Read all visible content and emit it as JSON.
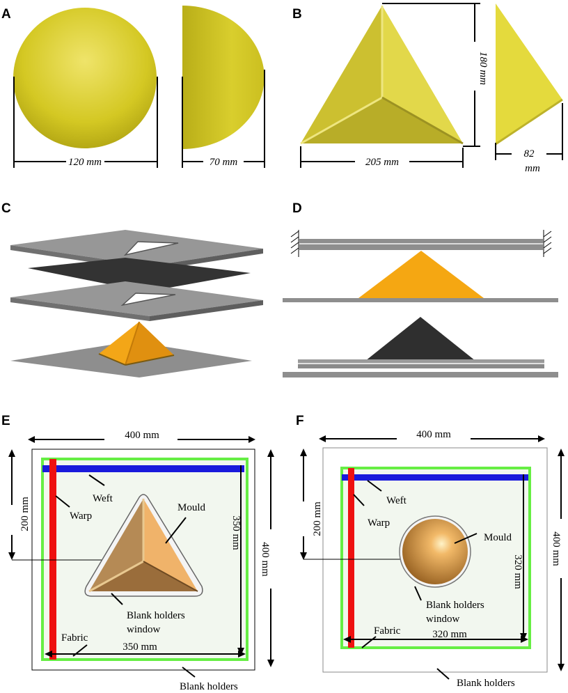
{
  "panels": {
    "a": {
      "label": "A",
      "dim_width": "120 mm",
      "dim_depth": "70 mm"
    },
    "b": {
      "label": "B",
      "dim_width": "205 mm",
      "dim_height": "180 mm",
      "dim_depth_1": "82",
      "dim_depth_2": "mm"
    },
    "c": {
      "label": "C"
    },
    "d": {
      "label": "D"
    },
    "e": {
      "label": "E",
      "dim_top": "400 mm",
      "dim_left": "200 mm",
      "dim_right": "400 mm",
      "dim_inner_v": "350 mm",
      "dim_inner_h": "350 mm",
      "weft": "Weft",
      "warp": "Warp",
      "mould": "Mould",
      "window_1": "Blank holders",
      "window_2": "window",
      "fabric": "Fabric",
      "holders": "Blank holders"
    },
    "f": {
      "label": "F",
      "dim_top": "400 mm",
      "dim_left": "200 mm",
      "dim_right": "400 mm",
      "dim_inner_v": "320 mm",
      "dim_inner_h": "320 mm",
      "weft": "Weft",
      "warp": "Warp",
      "mould": "Mould",
      "window_1": "Blank holders",
      "window_2": "window",
      "fabric": "Fabric",
      "holders": "Blank holders"
    }
  },
  "colors": {
    "mould_yellow": "#d8cc2a",
    "mould_orange": "#f5a712",
    "plate": "#8c8c8c",
    "fabric_dark": "#333333",
    "weft": "#1a1adc",
    "warp": "#ee1111",
    "fabric_border": "#66ee44"
  }
}
